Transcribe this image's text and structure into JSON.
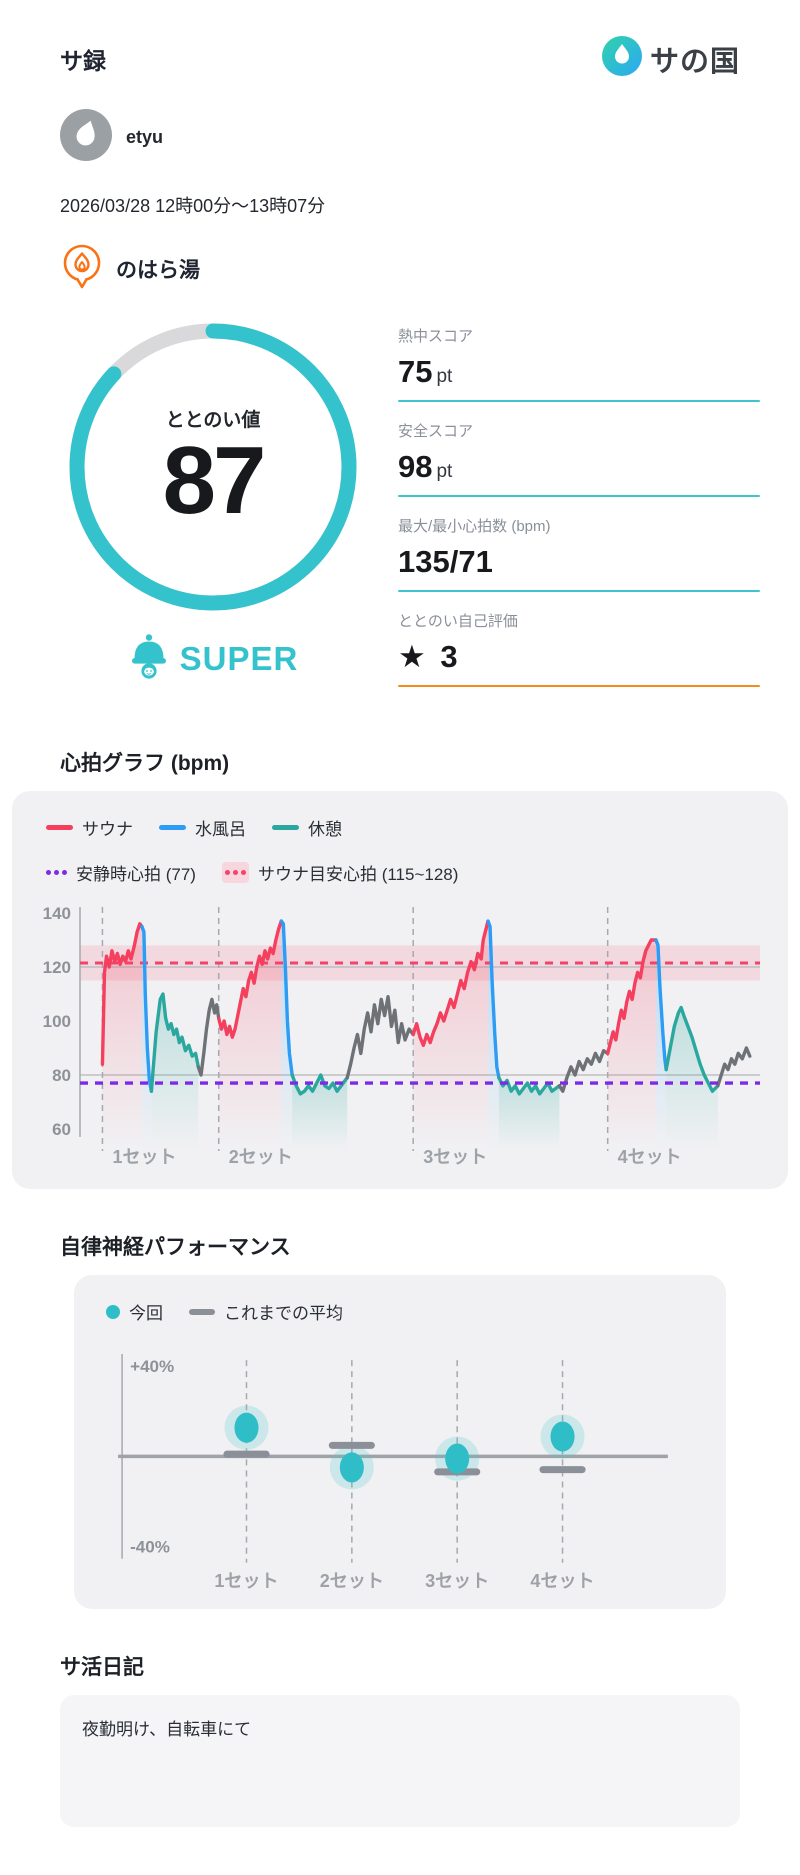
{
  "header": {
    "app_title": "サ録",
    "logo_text": "サの国"
  },
  "user": {
    "name": "etyu"
  },
  "session": {
    "datetime": "2026/03/28 12時00分〜13時07分",
    "venue": "のはら湯"
  },
  "gauge": {
    "label": "ととのい値",
    "value": 87,
    "max": 100,
    "rating": "SUPER",
    "ring_color": "#34c3cc",
    "track_color": "#d9d9db"
  },
  "stats": [
    {
      "label": "熱中スコア",
      "value": "75",
      "unit": "pt"
    },
    {
      "label": "安全スコア",
      "value": "98",
      "unit": "pt"
    },
    {
      "label": "最大/最小心拍数 (bpm)",
      "value": "135/71",
      "unit": ""
    },
    {
      "label": "ととのい自己評価",
      "value": "★ 3",
      "unit": ""
    }
  ],
  "sections": {
    "hr_title": "心拍グラフ (bpm)",
    "ans_title": "自律神経パフォーマンス",
    "diary_title": "サ活日記"
  },
  "diary": {
    "text": "夜勤明け、自転車にて"
  },
  "chart_data": [
    {
      "type": "line",
      "title": "心拍グラフ (bpm)",
      "ylim": [
        60,
        140
      ],
      "yticks": [
        140,
        120,
        100,
        80,
        60
      ],
      "grid_y": [
        120,
        80
      ],
      "resting_hr": 77,
      "sauna_target_range": [
        115,
        128
      ],
      "sauna_target_mid": 121.5,
      "legend": [
        {
          "label": "サウナ",
          "color": "#f43f5e",
          "style": "line"
        },
        {
          "label": "水風呂",
          "color": "#2d9cf4",
          "style": "line"
        },
        {
          "label": "休憩",
          "color": "#2aa79e",
          "style": "line"
        },
        {
          "label": "安静時心拍 (77)",
          "color": "#7d2ae8",
          "style": "dots"
        },
        {
          "label": "サウナ目安心拍 (115~128)",
          "color": "#f4436b",
          "style": "dots-band"
        }
      ],
      "colors": {
        "sauna": "#f43f5e",
        "bath": "#2d9cf4",
        "rest": "#2aa79e",
        "walk": "#6e7276",
        "band": "rgba(244,63,94,0.13)",
        "target_line": "#f4436b",
        "resting_line": "#7d2ae8"
      },
      "sets": [
        {
          "label": "1セット",
          "t": 3.3
        },
        {
          "label": "2セット",
          "t": 20.4
        },
        {
          "label": "3セット",
          "t": 49.0
        },
        {
          "label": "4セット",
          "t": 77.6
        }
      ],
      "segments": [
        {
          "phase": "sauna",
          "points": [
            [
              3.3,
              84
            ],
            [
              3.6,
              118
            ],
            [
              3.9,
              124
            ],
            [
              4.3,
              120
            ],
            [
              4.7,
              126
            ],
            [
              5.1,
              122
            ],
            [
              5.5,
              125
            ],
            [
              5.9,
              121
            ],
            [
              6.3,
              124
            ],
            [
              6.7,
              122
            ],
            [
              7.1,
              126
            ],
            [
              7.5,
              123
            ],
            [
              8.0,
              128
            ],
            [
              8.4,
              133
            ],
            [
              8.8,
              136
            ],
            [
              9.1,
              135
            ]
          ]
        },
        {
          "phase": "bath",
          "points": [
            [
              9.1,
              135
            ],
            [
              9.4,
              133
            ],
            [
              9.6,
              110
            ],
            [
              9.9,
              90
            ],
            [
              10.2,
              78
            ],
            [
              10.5,
              74
            ]
          ]
        },
        {
          "phase": "rest",
          "points": [
            [
              10.5,
              74
            ],
            [
              11.2,
              96
            ],
            [
              11.8,
              108
            ],
            [
              12.2,
              110
            ],
            [
              12.6,
              101
            ],
            [
              13.0,
              97
            ],
            [
              13.4,
              99
            ],
            [
              13.8,
              95
            ],
            [
              14.2,
              97
            ],
            [
              14.6,
              92
            ],
            [
              15.0,
              94
            ],
            [
              15.5,
              89
            ],
            [
              16.0,
              91
            ],
            [
              16.5,
              87
            ],
            [
              17.0,
              88
            ],
            [
              17.4,
              83
            ]
          ]
        },
        {
          "phase": "walk",
          "points": [
            [
              17.4,
              83
            ],
            [
              17.8,
              80
            ],
            [
              18.2,
              88
            ],
            [
              18.6,
              97
            ],
            [
              19.0,
              104
            ],
            [
              19.4,
              108
            ],
            [
              19.8,
              103
            ],
            [
              20.1,
              106
            ],
            [
              20.4,
              101
            ]
          ]
        },
        {
          "phase": "sauna",
          "points": [
            [
              20.4,
              101
            ],
            [
              20.8,
              97
            ],
            [
              21.2,
              100
            ],
            [
              21.6,
              95
            ],
            [
              22.0,
              98
            ],
            [
              22.4,
              94
            ],
            [
              22.8,
              97
            ],
            [
              23.2,
              102
            ],
            [
              23.6,
              107
            ],
            [
              24.0,
              112
            ],
            [
              24.4,
              109
            ],
            [
              24.8,
              115
            ],
            [
              25.2,
              118
            ],
            [
              25.6,
              114
            ],
            [
              26.0,
              120
            ],
            [
              26.4,
              124
            ],
            [
              26.8,
              121
            ],
            [
              27.2,
              126
            ],
            [
              27.6,
              123
            ],
            [
              28.0,
              127
            ],
            [
              28.4,
              125
            ],
            [
              28.8,
              130
            ],
            [
              29.2,
              134
            ],
            [
              29.6,
              137
            ]
          ]
        },
        {
          "phase": "bath",
          "points": [
            [
              29.6,
              137
            ],
            [
              29.9,
              136
            ],
            [
              30.2,
              120
            ],
            [
              30.5,
              100
            ],
            [
              30.8,
              88
            ],
            [
              31.2,
              80
            ]
          ]
        },
        {
          "phase": "rest",
          "points": [
            [
              31.2,
              80
            ],
            [
              31.8,
              76
            ],
            [
              32.4,
              73
            ],
            [
              33.0,
              74
            ],
            [
              33.6,
              76
            ],
            [
              34.2,
              74
            ],
            [
              34.8,
              77
            ],
            [
              35.4,
              80
            ],
            [
              36.0,
              76
            ],
            [
              36.6,
              75
            ],
            [
              37.2,
              77
            ],
            [
              37.8,
              74
            ],
            [
              38.4,
              76
            ],
            [
              39.3,
              79
            ]
          ]
        },
        {
          "phase": "walk",
          "points": [
            [
              39.3,
              79
            ],
            [
              39.8,
              84
            ],
            [
              40.3,
              90
            ],
            [
              40.8,
              95
            ],
            [
              41.3,
              88
            ],
            [
              41.8,
              97
            ],
            [
              42.3,
              103
            ],
            [
              42.8,
              96
            ],
            [
              43.3,
              106
            ],
            [
              43.8,
              99
            ],
            [
              44.3,
              108
            ],
            [
              44.8,
              102
            ],
            [
              45.3,
              109
            ],
            [
              45.8,
              98
            ],
            [
              46.3,
              104
            ],
            [
              46.8,
              92
            ],
            [
              47.3,
              99
            ],
            [
              47.8,
              93
            ],
            [
              48.4,
              97
            ],
            [
              49.0,
              95
            ]
          ]
        },
        {
          "phase": "sauna",
          "points": [
            [
              49.0,
              95
            ],
            [
              49.5,
              99
            ],
            [
              50.0,
              94
            ],
            [
              50.5,
              91
            ],
            [
              51.0,
              95
            ],
            [
              51.5,
              92
            ],
            [
              52.0,
              96
            ],
            [
              52.5,
              99
            ],
            [
              53.0,
              103
            ],
            [
              53.5,
              100
            ],
            [
              54.0,
              104
            ],
            [
              54.5,
              108
            ],
            [
              55.0,
              105
            ],
            [
              55.5,
              110
            ],
            [
              56.0,
              115
            ],
            [
              56.5,
              112
            ],
            [
              57.0,
              118
            ],
            [
              57.5,
              122
            ],
            [
              58.0,
              119
            ],
            [
              58.5,
              125
            ],
            [
              59.0,
              123
            ],
            [
              59.3,
              130
            ],
            [
              59.7,
              134
            ],
            [
              60.0,
              137
            ]
          ]
        },
        {
          "phase": "bath",
          "points": [
            [
              60.0,
              137
            ],
            [
              60.3,
              135
            ],
            [
              60.6,
              115
            ],
            [
              61.0,
              95
            ],
            [
              61.3,
              83
            ],
            [
              61.6,
              79
            ]
          ]
        },
        {
          "phase": "rest",
          "points": [
            [
              61.6,
              79
            ],
            [
              62.2,
              76
            ],
            [
              62.8,
              78
            ],
            [
              63.4,
              74
            ],
            [
              64.0,
              76
            ],
            [
              64.6,
              73
            ],
            [
              65.2,
              75
            ],
            [
              65.8,
              77
            ],
            [
              66.4,
              74
            ],
            [
              67.0,
              76
            ],
            [
              67.6,
              73
            ],
            [
              68.2,
              75
            ],
            [
              68.8,
              77
            ],
            [
              69.4,
              74
            ],
            [
              70.5,
              76
            ]
          ]
        },
        {
          "phase": "walk",
          "points": [
            [
              70.5,
              76
            ],
            [
              71.0,
              74
            ],
            [
              71.6,
              79
            ],
            [
              72.2,
              83
            ],
            [
              72.8,
              80
            ],
            [
              73.4,
              85
            ],
            [
              74.0,
              82
            ],
            [
              74.6,
              86
            ],
            [
              75.2,
              84
            ],
            [
              75.8,
              88
            ],
            [
              76.4,
              85
            ],
            [
              77.0,
              89
            ],
            [
              77.6,
              88
            ]
          ]
        },
        {
          "phase": "sauna",
          "points": [
            [
              77.6,
              88
            ],
            [
              78.0,
              92
            ],
            [
              78.4,
              96
            ],
            [
              78.8,
              93
            ],
            [
              79.2,
              99
            ],
            [
              79.6,
              104
            ],
            [
              80.0,
              101
            ],
            [
              80.4,
              107
            ],
            [
              80.8,
              111
            ],
            [
              81.2,
              108
            ],
            [
              81.6,
              114
            ],
            [
              82.0,
              118
            ],
            [
              82.4,
              116
            ],
            [
              82.8,
              122
            ],
            [
              83.2,
              126
            ],
            [
              83.6,
              128
            ],
            [
              84.0,
              130
            ],
            [
              84.7,
              130
            ]
          ]
        },
        {
          "phase": "bath",
          "points": [
            [
              84.7,
              130
            ],
            [
              85.0,
              128
            ],
            [
              85.3,
              112
            ],
            [
              85.7,
              96
            ],
            [
              86.0,
              86
            ],
            [
              86.2,
              82
            ]
          ]
        },
        {
          "phase": "rest",
          "points": [
            [
              86.2,
              82
            ],
            [
              86.8,
              90
            ],
            [
              87.4,
              98
            ],
            [
              88.0,
              103
            ],
            [
              88.4,
              105
            ],
            [
              88.8,
              102
            ],
            [
              89.4,
              98
            ],
            [
              90.0,
              94
            ],
            [
              90.6,
              89
            ],
            [
              91.2,
              84
            ],
            [
              91.8,
              80
            ],
            [
              92.4,
              77
            ],
            [
              93.0,
              74
            ],
            [
              93.8,
              76
            ]
          ]
        },
        {
          "phase": "walk",
          "points": [
            [
              93.8,
              76
            ],
            [
              94.3,
              80
            ],
            [
              94.8,
              84
            ],
            [
              95.3,
              82
            ],
            [
              95.8,
              86
            ],
            [
              96.3,
              84
            ],
            [
              96.8,
              88
            ],
            [
              97.4,
              86
            ],
            [
              98.0,
              90
            ],
            [
              98.5,
              87
            ]
          ]
        }
      ]
    },
    {
      "type": "scatter",
      "title": "自律神経パフォーマンス",
      "ylim": [
        -40,
        40
      ],
      "ylabel_top": "+40%",
      "ylabel_bottom": "-40%",
      "categories": [
        "1セット",
        "2セット",
        "3セット",
        "4セット"
      ],
      "legend": [
        {
          "label": "今回",
          "color": "#2fbec8"
        },
        {
          "label": "これまでの平均",
          "color": "#8a8f98"
        }
      ],
      "series": [
        {
          "name": "今回",
          "values": [
            13,
            -5,
            -1,
            9
          ]
        },
        {
          "name": "これまでの平均",
          "values": [
            1,
            5,
            -7,
            -6
          ]
        }
      ]
    }
  ]
}
